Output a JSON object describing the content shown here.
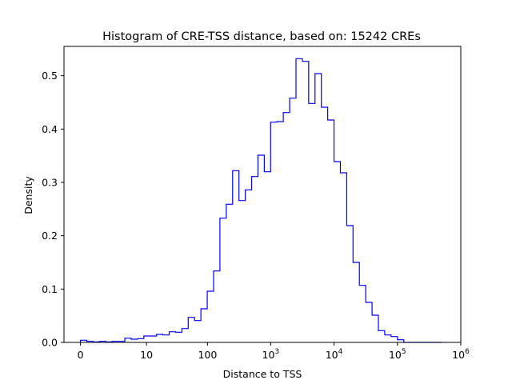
{
  "chart_data": {
    "type": "histogram",
    "title": "Histogram of CRE-TSS distance, based on: 15242 CREs",
    "xlabel": "Distance to TSS",
    "ylabel": "Density",
    "x_scale": "log1p",
    "x_ticks": [
      {
        "value": 0,
        "label": "0"
      },
      {
        "value": 10,
        "label": "10"
      },
      {
        "value": 100,
        "label": "100"
      },
      {
        "value": 1000,
        "label": "10",
        "exp": "3"
      },
      {
        "value": 10000,
        "label": "10",
        "exp": "4"
      },
      {
        "value": 100000,
        "label": "10",
        "exp": "5"
      },
      {
        "value": 1000000,
        "label": "10",
        "exp": "6"
      }
    ],
    "y_ticks": [
      "0.0",
      "0.1",
      "0.2",
      "0.3",
      "0.4",
      "0.5"
    ],
    "ylim": [
      0,
      0.555
    ],
    "grid": false,
    "line_color": "#0000ff",
    "bins_log10_distance_plus_one": {
      "start": 0.0,
      "end": 5.7,
      "count": 57
    },
    "densities": [
      0.004,
      0.002,
      0.001,
      0.002,
      0.001,
      0.002,
      0.002,
      0.008,
      0.006,
      0.007,
      0.012,
      0.012,
      0.015,
      0.014,
      0.02,
      0.019,
      0.026,
      0.047,
      0.041,
      0.063,
      0.096,
      0.134,
      0.233,
      0.259,
      0.322,
      0.266,
      0.286,
      0.311,
      0.351,
      0.32,
      0.413,
      0.414,
      0.431,
      0.458,
      0.532,
      0.527,
      0.448,
      0.504,
      0.441,
      0.417,
      0.339,
      0.318,
      0.219,
      0.15,
      0.107,
      0.075,
      0.051,
      0.022,
      0.014,
      0.011,
      0.005,
      0.0,
      0.0,
      0.0,
      0.0,
      0.0,
      0.0
    ]
  }
}
